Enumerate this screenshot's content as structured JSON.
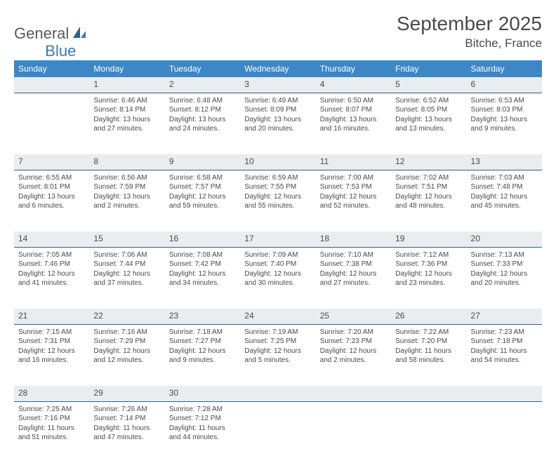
{
  "brand": {
    "part1": "General",
    "part2": "Blue"
  },
  "title": "September 2025",
  "location": "Bitche, France",
  "colors": {
    "header_bg": "#3d87c7",
    "header_text": "#ffffff",
    "daynum_bg": "#e9edf0",
    "daynum_border": "#2f5f8f",
    "body_text": "#4a4a4a",
    "logo_gray": "#5a5a5a",
    "logo_blue": "#3a7ab8"
  },
  "weekdays": [
    "Sunday",
    "Monday",
    "Tuesday",
    "Wednesday",
    "Thursday",
    "Friday",
    "Saturday"
  ],
  "weeks": [
    [
      null,
      {
        "n": "1",
        "sr": "6:46 AM",
        "ss": "8:14 PM",
        "dl": "13 hours and 27 minutes."
      },
      {
        "n": "2",
        "sr": "6:48 AM",
        "ss": "8:12 PM",
        "dl": "13 hours and 24 minutes."
      },
      {
        "n": "3",
        "sr": "6:49 AM",
        "ss": "8:09 PM",
        "dl": "13 hours and 20 minutes."
      },
      {
        "n": "4",
        "sr": "6:50 AM",
        "ss": "8:07 PM",
        "dl": "13 hours and 16 minutes."
      },
      {
        "n": "5",
        "sr": "6:52 AM",
        "ss": "8:05 PM",
        "dl": "13 hours and 13 minutes."
      },
      {
        "n": "6",
        "sr": "6:53 AM",
        "ss": "8:03 PM",
        "dl": "13 hours and 9 minutes."
      }
    ],
    [
      {
        "n": "7",
        "sr": "6:55 AM",
        "ss": "8:01 PM",
        "dl": "13 hours and 6 minutes."
      },
      {
        "n": "8",
        "sr": "6:56 AM",
        "ss": "7:59 PM",
        "dl": "13 hours and 2 minutes."
      },
      {
        "n": "9",
        "sr": "6:58 AM",
        "ss": "7:57 PM",
        "dl": "12 hours and 59 minutes."
      },
      {
        "n": "10",
        "sr": "6:59 AM",
        "ss": "7:55 PM",
        "dl": "12 hours and 55 minutes."
      },
      {
        "n": "11",
        "sr": "7:00 AM",
        "ss": "7:53 PM",
        "dl": "12 hours and 52 minutes."
      },
      {
        "n": "12",
        "sr": "7:02 AM",
        "ss": "7:51 PM",
        "dl": "12 hours and 48 minutes."
      },
      {
        "n": "13",
        "sr": "7:03 AM",
        "ss": "7:48 PM",
        "dl": "12 hours and 45 minutes."
      }
    ],
    [
      {
        "n": "14",
        "sr": "7:05 AM",
        "ss": "7:46 PM",
        "dl": "12 hours and 41 minutes."
      },
      {
        "n": "15",
        "sr": "7:06 AM",
        "ss": "7:44 PM",
        "dl": "12 hours and 37 minutes."
      },
      {
        "n": "16",
        "sr": "7:08 AM",
        "ss": "7:42 PM",
        "dl": "12 hours and 34 minutes."
      },
      {
        "n": "17",
        "sr": "7:09 AM",
        "ss": "7:40 PM",
        "dl": "12 hours and 30 minutes."
      },
      {
        "n": "18",
        "sr": "7:10 AM",
        "ss": "7:38 PM",
        "dl": "12 hours and 27 minutes."
      },
      {
        "n": "19",
        "sr": "7:12 AM",
        "ss": "7:36 PM",
        "dl": "12 hours and 23 minutes."
      },
      {
        "n": "20",
        "sr": "7:13 AM",
        "ss": "7:33 PM",
        "dl": "12 hours and 20 minutes."
      }
    ],
    [
      {
        "n": "21",
        "sr": "7:15 AM",
        "ss": "7:31 PM",
        "dl": "12 hours and 16 minutes."
      },
      {
        "n": "22",
        "sr": "7:16 AM",
        "ss": "7:29 PM",
        "dl": "12 hours and 12 minutes."
      },
      {
        "n": "23",
        "sr": "7:18 AM",
        "ss": "7:27 PM",
        "dl": "12 hours and 9 minutes."
      },
      {
        "n": "24",
        "sr": "7:19 AM",
        "ss": "7:25 PM",
        "dl": "12 hours and 5 minutes."
      },
      {
        "n": "25",
        "sr": "7:20 AM",
        "ss": "7:23 PM",
        "dl": "12 hours and 2 minutes."
      },
      {
        "n": "26",
        "sr": "7:22 AM",
        "ss": "7:20 PM",
        "dl": "11 hours and 58 minutes."
      },
      {
        "n": "27",
        "sr": "7:23 AM",
        "ss": "7:18 PM",
        "dl": "11 hours and 54 minutes."
      }
    ],
    [
      {
        "n": "28",
        "sr": "7:25 AM",
        "ss": "7:16 PM",
        "dl": "11 hours and 51 minutes."
      },
      {
        "n": "29",
        "sr": "7:26 AM",
        "ss": "7:14 PM",
        "dl": "11 hours and 47 minutes."
      },
      {
        "n": "30",
        "sr": "7:28 AM",
        "ss": "7:12 PM",
        "dl": "11 hours and 44 minutes."
      },
      null,
      null,
      null,
      null
    ]
  ],
  "labels": {
    "sunrise": "Sunrise: ",
    "sunset": "Sunset: ",
    "daylight": "Daylight: "
  }
}
